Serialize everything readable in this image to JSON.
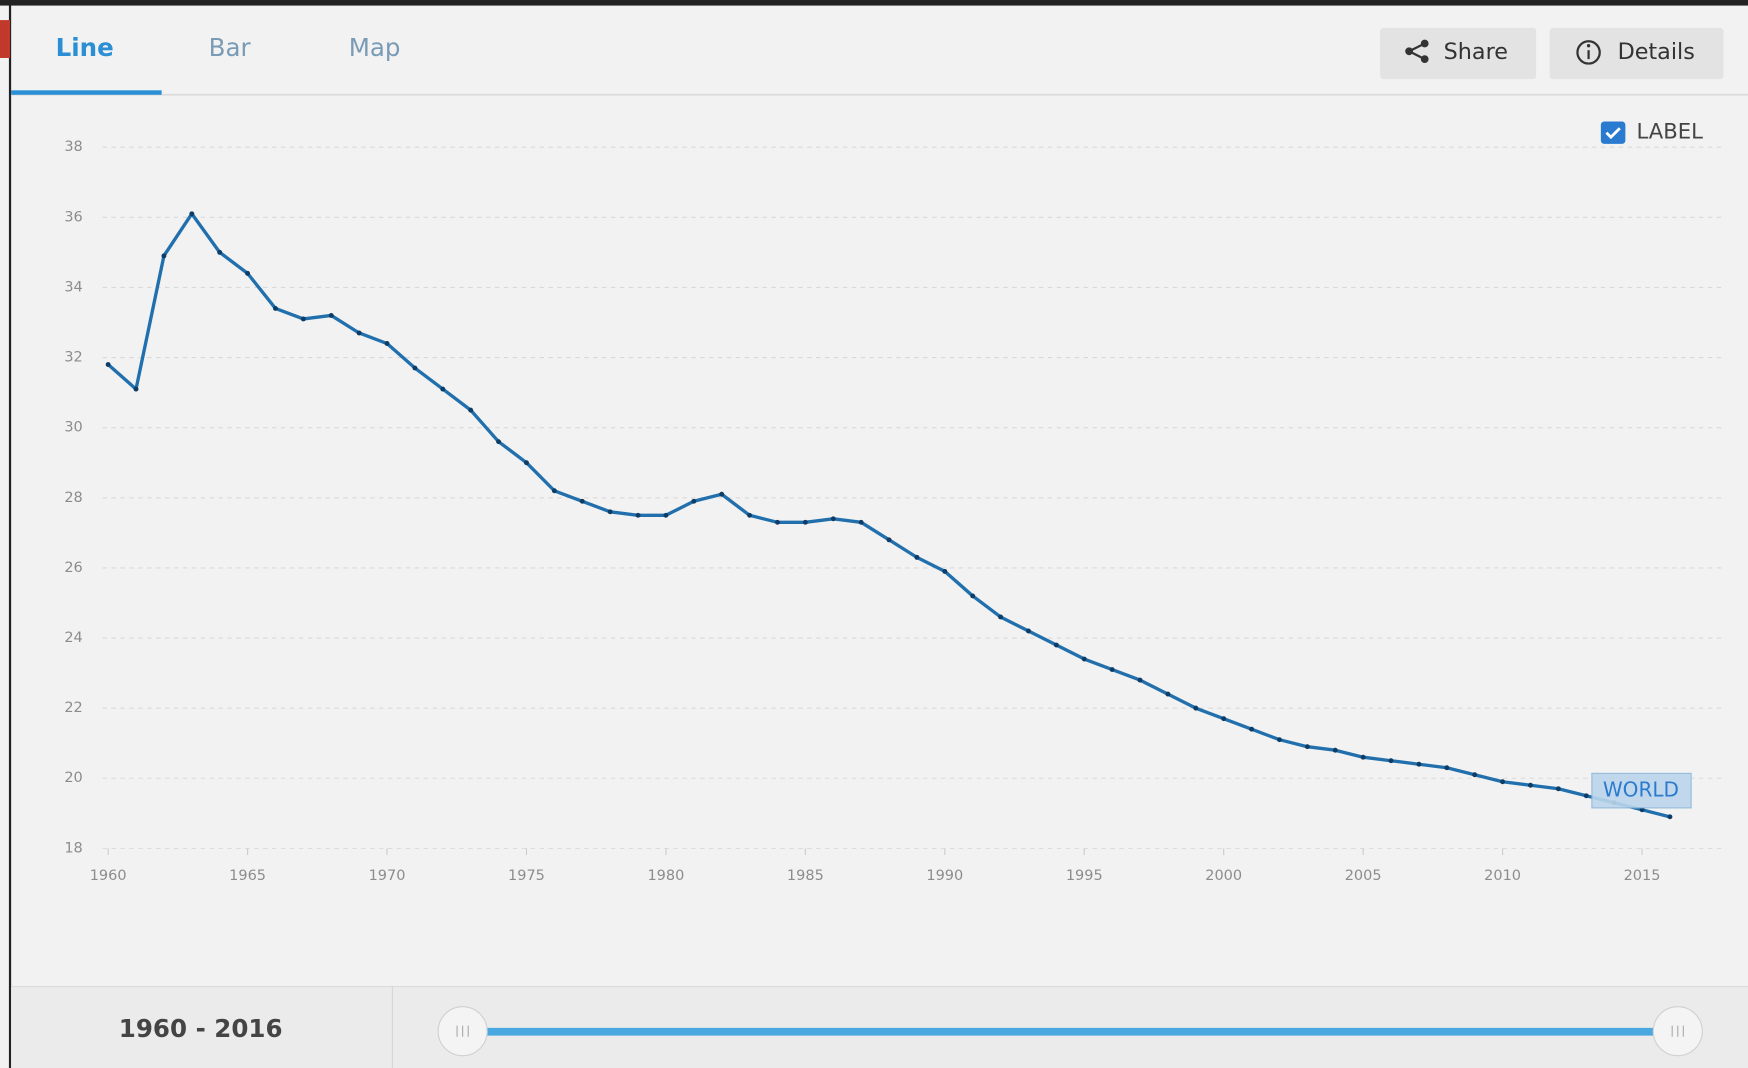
{
  "tabs": [
    "Line",
    "Bar",
    "Map"
  ],
  "buttons": [
    "Share",
    "Details"
  ],
  "label_toggle": "LABEL",
  "range": "1960 - 2016",
  "chart_data": {
    "type": "line",
    "x": [
      1960,
      1961,
      1962,
      1963,
      1964,
      1965,
      1966,
      1967,
      1968,
      1969,
      1970,
      1971,
      1972,
      1973,
      1974,
      1975,
      1976,
      1977,
      1978,
      1979,
      1980,
      1981,
      1982,
      1983,
      1984,
      1985,
      1986,
      1987,
      1988,
      1989,
      1990,
      1991,
      1992,
      1993,
      1994,
      1995,
      1996,
      1997,
      1998,
      1999,
      2000,
      2001,
      2002,
      2003,
      2004,
      2005,
      2006,
      2007,
      2008,
      2009,
      2010,
      2011,
      2012,
      2013,
      2014,
      2015,
      2016
    ],
    "series": [
      {
        "name": "WORLD",
        "color": "#2170ad",
        "values": [
          31.8,
          31.1,
          34.9,
          36.1,
          35.0,
          34.4,
          33.4,
          33.1,
          33.2,
          32.7,
          32.4,
          31.7,
          31.1,
          30.5,
          29.6,
          29.0,
          28.2,
          27.9,
          27.6,
          27.5,
          27.5,
          27.9,
          28.1,
          27.5,
          27.3,
          27.3,
          27.4,
          27.3,
          26.8,
          26.3,
          25.9,
          25.2,
          24.6,
          24.2,
          23.8,
          23.4,
          23.1,
          22.8,
          22.4,
          22.0,
          21.7,
          21.4,
          21.1,
          20.9,
          20.8,
          20.6,
          20.5,
          20.4,
          20.3,
          20.1,
          19.9,
          19.8,
          19.7,
          19.5,
          19.3,
          19.1,
          18.9
        ]
      }
    ],
    "xlim": [
      1960,
      2018
    ],
    "xticks": [
      1960,
      1965,
      1970,
      1975,
      1980,
      1985,
      1990,
      1995,
      2000,
      2005,
      2010,
      2015
    ],
    "ylim": [
      18,
      38
    ],
    "yticks": [
      18,
      20,
      22,
      24,
      26,
      28,
      30,
      32,
      34,
      36,
      38
    ],
    "grid": true
  }
}
